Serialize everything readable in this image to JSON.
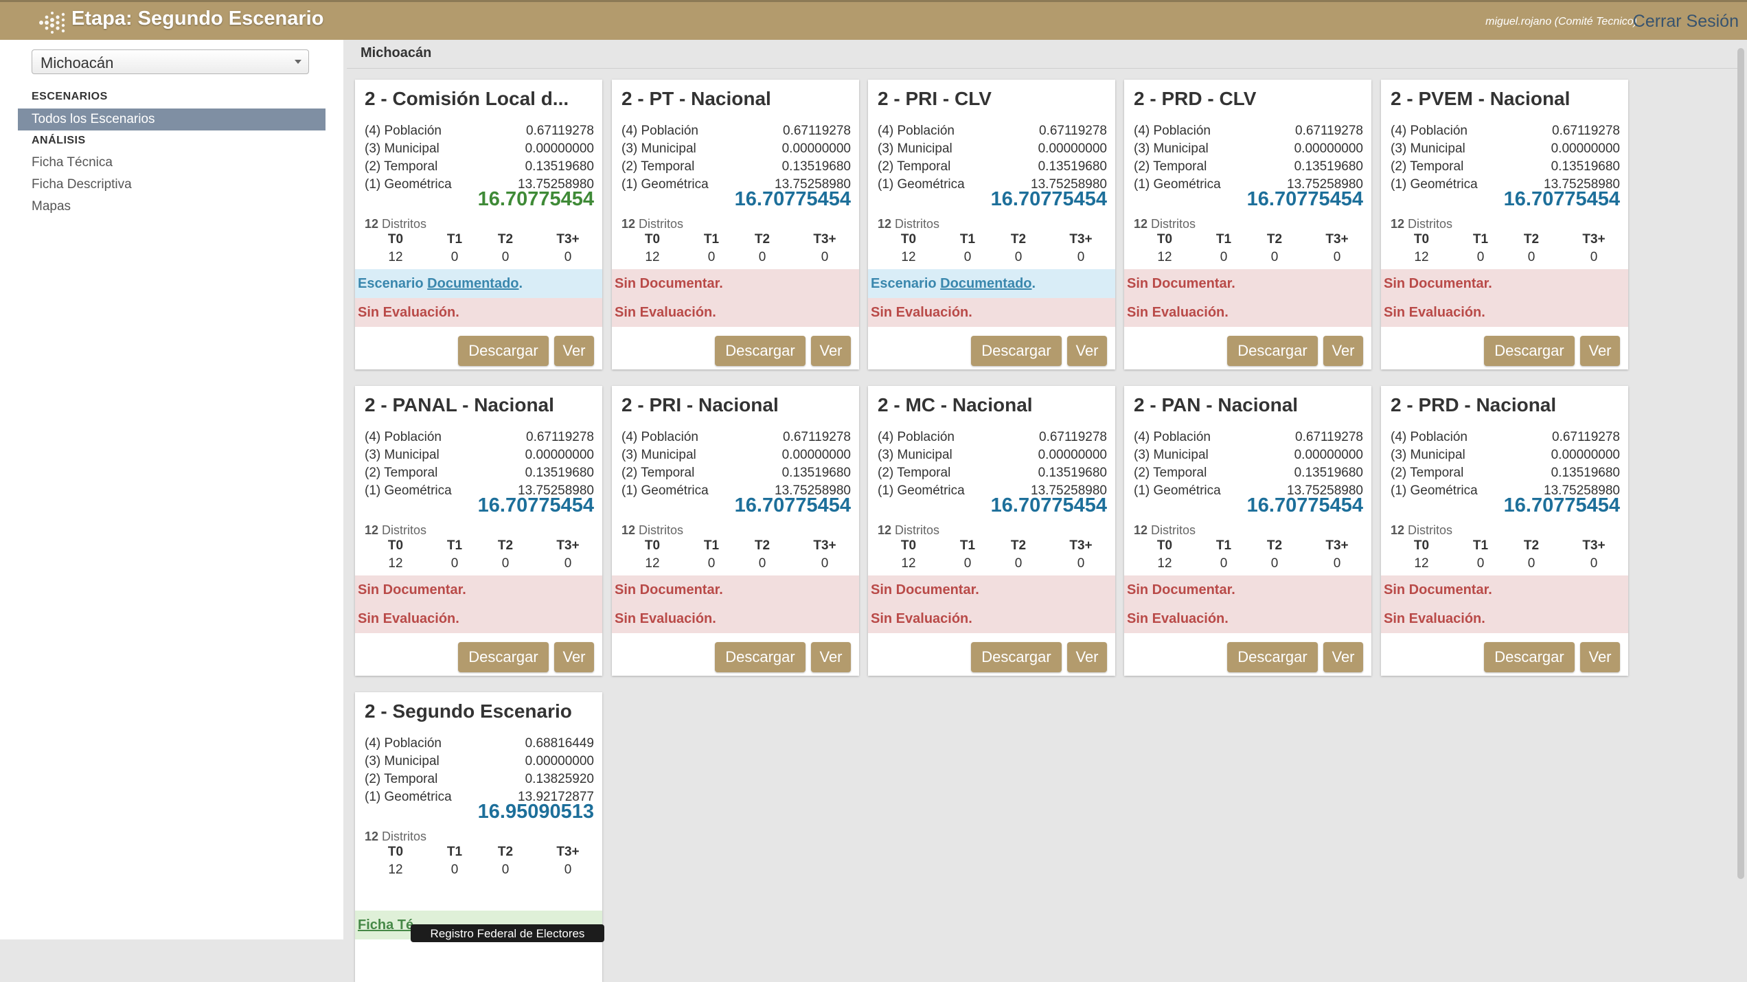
{
  "header": {
    "title": "Etapa: Segundo Escenario",
    "user": "miguel.rojano (Comité Tecnico)",
    "logout": "Cerrar Sesión"
  },
  "sidebar": {
    "state": "Michoacán",
    "section_escenarios": "ESCENARIOS",
    "active_item": "Todos los Escenarios",
    "section_analisis": "ANÁLISIS",
    "items": [
      "Ficha Técnica",
      "Ficha Descriptiva",
      "Mapas"
    ]
  },
  "content": {
    "title": "Michoacán"
  },
  "labels": {
    "poblacion": "(4) Población",
    "municipal": "(3) Municipal",
    "temporal": "(2) Temporal",
    "geometrica": "(1) Geométrica",
    "distritos": "Distritos",
    "t0": "T0",
    "t1": "T1",
    "t2": "T2",
    "t3": "T3+",
    "escenario": "Escenario",
    "documentado": "Documentado",
    "sin_documentar": "Sin Documentar.",
    "sin_evaluacion": "Sin Evaluación.",
    "ficha": "Ficha Té",
    "descargar": "Descargar",
    "ver": "Ver"
  },
  "tooltip": "Registro Federal de Electores",
  "cards": [
    {
      "title": "2 - Comisión Local d...",
      "poblacion": "0.67119278",
      "municipal": "0.00000000",
      "temporal": "0.13519680",
      "geometrica": "13.75258980",
      "total": "16.70775454",
      "total_color": "green",
      "districts": "12",
      "t": [
        "12",
        "0",
        "0",
        "0"
      ],
      "doc": "documented"
    },
    {
      "title": "2 - PT - Nacional",
      "poblacion": "0.67119278",
      "municipal": "0.00000000",
      "temporal": "0.13519680",
      "geometrica": "13.75258980",
      "total": "16.70775454",
      "total_color": "blue",
      "districts": "12",
      "t": [
        "12",
        "0",
        "0",
        "0"
      ],
      "doc": "none"
    },
    {
      "title": "2 - PRI - CLV",
      "poblacion": "0.67119278",
      "municipal": "0.00000000",
      "temporal": "0.13519680",
      "geometrica": "13.75258980",
      "total": "16.70775454",
      "total_color": "blue",
      "districts": "12",
      "t": [
        "12",
        "0",
        "0",
        "0"
      ],
      "doc": "documented"
    },
    {
      "title": "2 - PRD - CLV",
      "poblacion": "0.67119278",
      "municipal": "0.00000000",
      "temporal": "0.13519680",
      "geometrica": "13.75258980",
      "total": "16.70775454",
      "total_color": "blue",
      "districts": "12",
      "t": [
        "12",
        "0",
        "0",
        "0"
      ],
      "doc": "none"
    },
    {
      "title": "2 - PVEM - Nacional",
      "poblacion": "0.67119278",
      "municipal": "0.00000000",
      "temporal": "0.13519680",
      "geometrica": "13.75258980",
      "total": "16.70775454",
      "total_color": "blue",
      "districts": "12",
      "t": [
        "12",
        "0",
        "0",
        "0"
      ],
      "doc": "none"
    },
    {
      "title": "2 - PANAL - Nacional",
      "poblacion": "0.67119278",
      "municipal": "0.00000000",
      "temporal": "0.13519680",
      "geometrica": "13.75258980",
      "total": "16.70775454",
      "total_color": "blue",
      "districts": "12",
      "t": [
        "12",
        "0",
        "0",
        "0"
      ],
      "doc": "none"
    },
    {
      "title": "2 - PRI - Nacional",
      "poblacion": "0.67119278",
      "municipal": "0.00000000",
      "temporal": "0.13519680",
      "geometrica": "13.75258980",
      "total": "16.70775454",
      "total_color": "blue",
      "districts": "12",
      "t": [
        "12",
        "0",
        "0",
        "0"
      ],
      "doc": "none"
    },
    {
      "title": "2 - MC - Nacional",
      "poblacion": "0.67119278",
      "municipal": "0.00000000",
      "temporal": "0.13519680",
      "geometrica": "13.75258980",
      "total": "16.70775454",
      "total_color": "blue",
      "districts": "12",
      "t": [
        "12",
        "0",
        "0",
        "0"
      ],
      "doc": "none"
    },
    {
      "title": "2 - PAN - Nacional",
      "poblacion": "0.67119278",
      "municipal": "0.00000000",
      "temporal": "0.13519680",
      "geometrica": "13.75258980",
      "total": "16.70775454",
      "total_color": "blue",
      "districts": "12",
      "t": [
        "12",
        "0",
        "0",
        "0"
      ],
      "doc": "none"
    },
    {
      "title": "2 - PRD - Nacional",
      "poblacion": "0.67119278",
      "municipal": "0.00000000",
      "temporal": "0.13519680",
      "geometrica": "13.75258980",
      "total": "16.70775454",
      "total_color": "blue",
      "districts": "12",
      "t": [
        "12",
        "0",
        "0",
        "0"
      ],
      "doc": "none"
    },
    {
      "title": "2 - Segundo Escenario",
      "poblacion": "0.68816449",
      "municipal": "0.00000000",
      "temporal": "0.13825920",
      "geometrica": "13.92172877",
      "total": "16.95090513",
      "total_color": "blue",
      "districts": "12",
      "t": [
        "12",
        "0",
        "0",
        "0"
      ],
      "doc": "ficha"
    }
  ],
  "colors": {
    "header_bg": "#b39b6d",
    "button_bg": "#b39b6d",
    "total_blue": "#1d6f9a",
    "total_green": "#3f8a37",
    "error_text": "#b94a48",
    "info_text": "#3a87ad"
  }
}
